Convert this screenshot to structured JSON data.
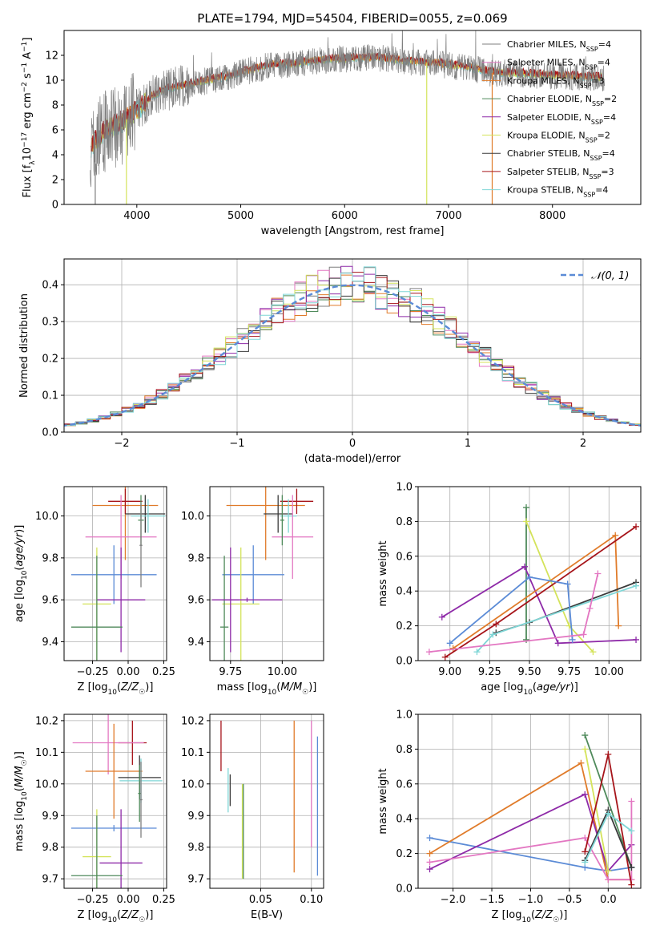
{
  "figure_title": "PLATE=1794, MJD=54504, FIBERID=0055, z=0.069",
  "colors": {
    "Chabrier MILES": "#7f7f7f",
    "Salpeter MILES": "#e377c2",
    "Kroupa MILES": "#e07b2a",
    "Chabrier ELODIE": "#4f8a5b",
    "Salpeter ELODIE": "#8e2aa8",
    "Kroupa ELODIE": "#d4e35a",
    "Chabrier STELIB": "#3a3a3a",
    "Salpeter STELIB": "#a6141a",
    "Kroupa STELIB": "#7fd6d6",
    "Extra": "#5b8bd6"
  },
  "chart_data": [
    {
      "type": "line",
      "xlabel": "wavelength [Angstrom, rest frame]",
      "ylabel": "Flux [f_λ10^-17 erg cm^-2 s^-1 A^-1]",
      "xlim": [
        3300,
        8850
      ],
      "ylim": [
        0,
        14
      ],
      "xticks": [
        4000,
        5000,
        6000,
        7000,
        8000
      ],
      "yticks": [
        0,
        2,
        4,
        6,
        8,
        10,
        12
      ],
      "legend": "top-right",
      "series": [
        {
          "name": "Chabrier MILES, N_SSP=4",
          "label": "Chabrier MILES, N",
          "sub": "SSP",
          "tail": "=4"
        },
        {
          "name": "Salpeter MILES, N_SSP=4",
          "label": "Salpeter MILES, N",
          "sub": "SSP",
          "tail": "=4"
        },
        {
          "name": "Kroupa MILES, N_SSP=3",
          "label": "Kroupa MILES, N",
          "sub": "SSP",
          "tail": "=3"
        },
        {
          "name": "Chabrier ELODIE, N_SSP=2",
          "label": "Chabrier ELODIE, N",
          "sub": "SSP",
          "tail": "=2"
        },
        {
          "name": "Salpeter ELODIE, N_SSP=4",
          "label": "Salpeter ELODIE, N",
          "sub": "SSP",
          "tail": "=4"
        },
        {
          "name": "Kroupa ELODIE, N_SSP=2",
          "label": "Kroupa ELODIE, N",
          "sub": "SSP",
          "tail": "=2"
        },
        {
          "name": "Chabrier STELIB, N_SSP=4",
          "label": "Chabrier STELIB, N",
          "sub": "SSP",
          "tail": "=4"
        },
        {
          "name": "Salpeter STELIB, N_SSP=3",
          "label": "Salpeter STELIB, N",
          "sub": "SSP",
          "tail": "=3"
        },
        {
          "name": "Kroupa STELIB, N_SSP=4",
          "label": "Kroupa STELIB, N",
          "sub": "SSP",
          "tail": "=4"
        }
      ],
      "continuum": {
        "x": [
          3550,
          3700,
          3850,
          4000,
          4150,
          4300,
          4500,
          4700,
          4900,
          5100,
          5300,
          5500,
          5800,
          6000,
          6300,
          6600,
          6900,
          7200,
          7400
        ],
        "y": [
          4.5,
          6.0,
          6.5,
          7.5,
          8.7,
          9.3,
          9.6,
          10.0,
          10.3,
          10.8,
          11.2,
          11.3,
          11.6,
          11.7,
          11.8,
          11.5,
          11.3,
          11.0,
          10.6
        ]
      },
      "data_x_range": [
        3550,
        8500
      ]
    },
    {
      "type": "bar",
      "xlabel": "(data-model)/error",
      "ylabel": "Normed distribution",
      "xlim": [
        -2.5,
        2.5
      ],
      "ylim": [
        0,
        0.47
      ],
      "xticks": [
        -2,
        -1,
        0,
        1,
        2
      ],
      "yticks": [
        0.0,
        0.1,
        0.2,
        0.3,
        0.4
      ],
      "legend_label": "𝒩(0, 1)",
      "bin_width": 0.1,
      "series_colors_order": [
        "Chabrier MILES",
        "Salpeter MILES",
        "Kroupa MILES",
        "Chabrier ELODIE",
        "Salpeter ELODIE",
        "Kroupa ELODIE",
        "Chabrier STELIB",
        "Salpeter STELIB",
        "Kroupa STELIB"
      ]
    },
    {
      "type": "scatter",
      "xlabel": "Z [log10(Z/Z☉)]",
      "ylabel": "age [log10(age/yr)]",
      "xlim": [
        -0.45,
        0.27
      ],
      "ylim": [
        9.31,
        10.14
      ],
      "xticks": [
        -0.25,
        0.0,
        0.25
      ],
      "yticks": [
        9.4,
        9.6,
        9.8,
        10.0
      ],
      "points": [
        {
          "c": "Kroupa MILES",
          "x": -0.02,
          "xerr": 0.23,
          "y": 10.05,
          "yerr": 0.26
        },
        {
          "c": "Salpeter STELIB",
          "x": -0.02,
          "xerr": 0.12,
          "y": 10.07,
          "yerr": 0.06
        },
        {
          "c": "Chabrier STELIB",
          "x": 0.12,
          "xerr": 0.14,
          "y": 10.01,
          "yerr": 0.09
        },
        {
          "c": "Kroupa STELIB",
          "x": 0.14,
          "xerr": 0.12,
          "y": 10.0,
          "yerr": 0.08
        },
        {
          "c": "Salpeter MILES",
          "x": -0.05,
          "xerr": 0.25,
          "y": 9.9,
          "yerr": 0.2
        },
        {
          "c": "Chabrier ELODIE",
          "x": 0.09,
          "xerr": 0.02,
          "y": 9.98,
          "yerr": 0.12
        },
        {
          "c": "Extra",
          "x": -0.1,
          "xerr": 0.3,
          "y": 9.72,
          "yerr": 0.14
        },
        {
          "c": "Kroupa ELODIE",
          "x": -0.22,
          "xerr": 0.1,
          "y": 9.58,
          "yerr": 0.27
        },
        {
          "c": "Salpeter ELODIE",
          "x": -0.05,
          "xerr": 0.17,
          "y": 9.6,
          "yerr": 0.25
        },
        {
          "c": "Chabrier ELODIE",
          "x": -0.22,
          "xerr": 0.18,
          "y": 9.47,
          "yerr": 0.34
        },
        {
          "c": "Chabrier MILES",
          "x": 0.09,
          "xerr": 0.01,
          "y": 9.86,
          "yerr": 0.2
        }
      ]
    },
    {
      "type": "scatter",
      "xlabel": "mass [log10(M/M☉)]",
      "ylabel": "",
      "xlim": [
        9.65,
        10.2
      ],
      "ylim": [
        9.31,
        10.14
      ],
      "xticks": [
        9.75,
        10.0
      ],
      "yticks": [
        9.4,
        9.6,
        9.8,
        10.0
      ],
      "points": [
        {
          "c": "Kroupa MILES",
          "x": 9.92,
          "xerr": 0.19,
          "y": 10.05,
          "yerr": 0.26
        },
        {
          "c": "Salpeter STELIB",
          "x": 10.07,
          "xerr": 0.08,
          "y": 10.07,
          "yerr": 0.06
        },
        {
          "c": "Chabrier STELIB",
          "x": 9.98,
          "xerr": 0.07,
          "y": 10.01,
          "yerr": 0.09
        },
        {
          "c": "Kroupa STELIB",
          "x": 10.03,
          "xerr": 0.04,
          "y": 10.0,
          "yerr": 0.08
        },
        {
          "c": "Salpeter MILES",
          "x": 10.05,
          "xerr": 0.1,
          "y": 9.9,
          "yerr": 0.2
        },
        {
          "c": "Chabrier ELODIE",
          "x": 10.0,
          "xerr": 0.01,
          "y": 9.98,
          "yerr": 0.12
        },
        {
          "c": "Extra",
          "x": 9.86,
          "xerr": 0.15,
          "y": 9.72,
          "yerr": 0.14
        },
        {
          "c": "Kroupa ELODIE",
          "x": 9.8,
          "xerr": 0.09,
          "y": 9.58,
          "yerr": 0.27
        },
        {
          "c": "Salpeter ELODIE",
          "x": 9.75,
          "xerr": 0.04,
          "y": 9.6,
          "yerr": 0.25
        },
        {
          "c": "Chabrier ELODIE",
          "x": 9.72,
          "xerr": 0.02,
          "y": 9.47,
          "yerr": 0.34
        },
        {
          "c": "Salpeter ELODIE",
          "x": 9.83,
          "xerr": 0.17,
          "y": 9.6,
          "yerr": 0.01
        }
      ]
    },
    {
      "type": "line",
      "xlabel": "age [log10(age/yr)]",
      "ylabel": "mass weight",
      "xlim": [
        8.8,
        10.2
      ],
      "ylim": [
        0.0,
        1.0
      ],
      "xticks": [
        9.0,
        9.25,
        9.5,
        9.75,
        10.0
      ],
      "yticks": [
        0.0,
        0.2,
        0.4,
        0.6,
        0.8,
        1.0
      ],
      "series": [
        {
          "c": "Chabrier ELODIE",
          "x": [
            9.48,
            9.48
          ],
          "y": [
            0.12,
            0.88
          ]
        },
        {
          "c": "Kroupa ELODIE",
          "x": [
            9.48,
            9.75,
            9.9
          ],
          "y": [
            0.8,
            0.2,
            0.05
          ]
        },
        {
          "c": "Salpeter ELODIE",
          "x": [
            8.95,
            9.47,
            9.68,
            10.17
          ],
          "y": [
            0.25,
            0.54,
            0.1,
            0.12
          ]
        },
        {
          "c": "Kroupa MILES",
          "x": [
            9.02,
            10.04,
            10.06
          ],
          "y": [
            0.07,
            0.72,
            0.2
          ]
        },
        {
          "c": "Salpeter STELIB",
          "x": [
            8.97,
            9.29,
            10.17
          ],
          "y": [
            0.02,
            0.21,
            0.77
          ]
        },
        {
          "c": "Chabrier STELIB",
          "x": [
            9.29,
            9.5,
            10.17
          ],
          "y": [
            0.16,
            0.22,
            0.45
          ]
        },
        {
          "c": "Kroupa STELIB",
          "x": [
            9.17,
            9.27,
            10.17
          ],
          "y": [
            0.05,
            0.15,
            0.43
          ]
        },
        {
          "c": "Extra",
          "x": [
            9.0,
            9.5,
            9.74,
            9.77
          ],
          "y": [
            0.1,
            0.48,
            0.44,
            0.12
          ]
        },
        {
          "c": "Salpeter MILES",
          "x": [
            8.87,
            9.84,
            9.88,
            9.93
          ],
          "y": [
            0.05,
            0.15,
            0.3,
            0.5
          ]
        }
      ]
    },
    {
      "type": "scatter",
      "xlabel": "Z [log10(Z/Z☉)]",
      "ylabel": "mass [log10(M/M☉)]",
      "xlim": [
        -0.45,
        0.27
      ],
      "ylim": [
        9.67,
        10.22
      ],
      "xticks": [
        -0.25,
        0.0,
        0.25
      ],
      "yticks": [
        9.7,
        9.8,
        9.9,
        10.0,
        10.1,
        10.2
      ],
      "points": [
        {
          "c": "Salpeter STELIB",
          "x": 0.03,
          "xerr": 0.1,
          "y": 10.13,
          "yerr": 0.07
        },
        {
          "c": "Salpeter MILES",
          "x": -0.14,
          "xerr": 0.25,
          "y": 10.13,
          "yerr": 0.1
        },
        {
          "c": "Kroupa MILES",
          "x": -0.1,
          "xerr": 0.2,
          "y": 10.04,
          "yerr": 0.15
        },
        {
          "c": "Chabrier STELIB",
          "x": 0.08,
          "xerr": 0.15,
          "y": 10.02,
          "yerr": 0.07
        },
        {
          "c": "Kroupa STELIB",
          "x": 0.09,
          "xerr": 0.15,
          "y": 10.01,
          "yerr": 0.07
        },
        {
          "c": "Chabrier ELODIE",
          "x": 0.08,
          "xerr": 0.01,
          "y": 9.97,
          "yerr": 0.09
        },
        {
          "c": "Extra",
          "x": -0.1,
          "xerr": 0.3,
          "y": 9.86,
          "yerr": 0.01
        },
        {
          "c": "Kroupa ELODIE",
          "x": -0.22,
          "xerr": 0.1,
          "y": 9.77,
          "yerr": 0.15
        },
        {
          "c": "Salpeter ELODIE",
          "x": -0.05,
          "xerr": 0.15,
          "y": 9.75,
          "yerr": 0.17
        },
        {
          "c": "Chabrier ELODIE",
          "x": -0.22,
          "xerr": 0.18,
          "y": 9.71,
          "yerr": 0.19
        },
        {
          "c": "Chabrier MILES",
          "x": 0.09,
          "xerr": 0.01,
          "y": 9.95,
          "yerr": 0.12
        }
      ]
    },
    {
      "type": "scatter",
      "xlabel": "E(B-V)",
      "ylabel": "",
      "xlim": [
        0.0,
        0.112
      ],
      "ylim": [
        9.67,
        10.22
      ],
      "xticks": [
        0.05,
        0.1
      ],
      "yticks": [
        9.7,
        9.8,
        9.9,
        10.0,
        10.1,
        10.2
      ],
      "points": [
        {
          "c": "Salpeter STELIB",
          "x": 0.011,
          "y": 10.12,
          "yerr": 0.08
        },
        {
          "c": "Kroupa STELIB",
          "x": 0.018,
          "y": 9.98,
          "yerr": 0.07
        },
        {
          "c": "Chabrier STELIB",
          "x": 0.02,
          "y": 9.98,
          "yerr": 0.05
        },
        {
          "c": "Kroupa ELODIE",
          "x": 0.032,
          "y": 9.85,
          "yerr": 0.15
        },
        {
          "c": "Chabrier ELODIE",
          "x": 0.033,
          "y": 9.85,
          "yerr": 0.15
        },
        {
          "c": "Kroupa MILES",
          "x": 0.083,
          "y": 9.96,
          "yerr": 0.24
        },
        {
          "c": "Salpeter MILES",
          "x": 0.1,
          "y": 10.0,
          "yerr": 0.2
        },
        {
          "c": "Extra",
          "x": 0.106,
          "y": 9.93,
          "yerr": 0.22
        }
      ]
    },
    {
      "type": "line",
      "xlabel": "Z [log10(Z/Z☉)]",
      "ylabel": "mass weight",
      "xlim": [
        -2.45,
        0.42
      ],
      "ylim": [
        0.0,
        1.0
      ],
      "xticks": [
        -2.0,
        -1.5,
        -1.0,
        -0.5,
        0.0
      ],
      "yticks": [
        0.0,
        0.2,
        0.4,
        0.6,
        0.8,
        1.0
      ],
      "series": [
        {
          "c": "Extra",
          "x": [
            -2.3,
            -0.3,
            0.0,
            0.3
          ],
          "y": [
            0.29,
            0.12,
            0.1,
            0.12
          ]
        },
        {
          "c": "Kroupa MILES",
          "x": [
            -2.3,
            -0.35,
            0.0,
            0.3
          ],
          "y": [
            0.2,
            0.72,
            0.05,
            0.05
          ]
        },
        {
          "c": "Salpeter ELODIE",
          "x": [
            -2.3,
            -0.3,
            0.0,
            0.3
          ],
          "y": [
            0.11,
            0.54,
            0.1,
            0.25
          ]
        },
        {
          "c": "Salpeter MILES",
          "x": [
            -2.3,
            -0.3,
            0.0,
            0.3,
            0.3
          ],
          "y": [
            0.15,
            0.29,
            0.05,
            0.05,
            0.5
          ]
        },
        {
          "c": "Chabrier ELODIE",
          "x": [
            -0.3,
            0.3
          ],
          "y": [
            0.88,
            0.12
          ]
        },
        {
          "c": "Kroupa ELODIE",
          "x": [
            -0.3,
            0.0
          ],
          "y": [
            0.8,
            0.1
          ]
        },
        {
          "c": "Salpeter STELIB",
          "x": [
            -0.3,
            0.0,
            0.3
          ],
          "y": [
            0.21,
            0.77,
            0.02
          ]
        },
        {
          "c": "Chabrier STELIB",
          "x": [
            -0.3,
            0.0,
            0.3
          ],
          "y": [
            0.16,
            0.45,
            0.12
          ]
        },
        {
          "c": "Kroupa STELIB",
          "x": [
            -0.3,
            0.0,
            0.3
          ],
          "y": [
            0.15,
            0.43,
            0.33
          ]
        }
      ]
    }
  ]
}
